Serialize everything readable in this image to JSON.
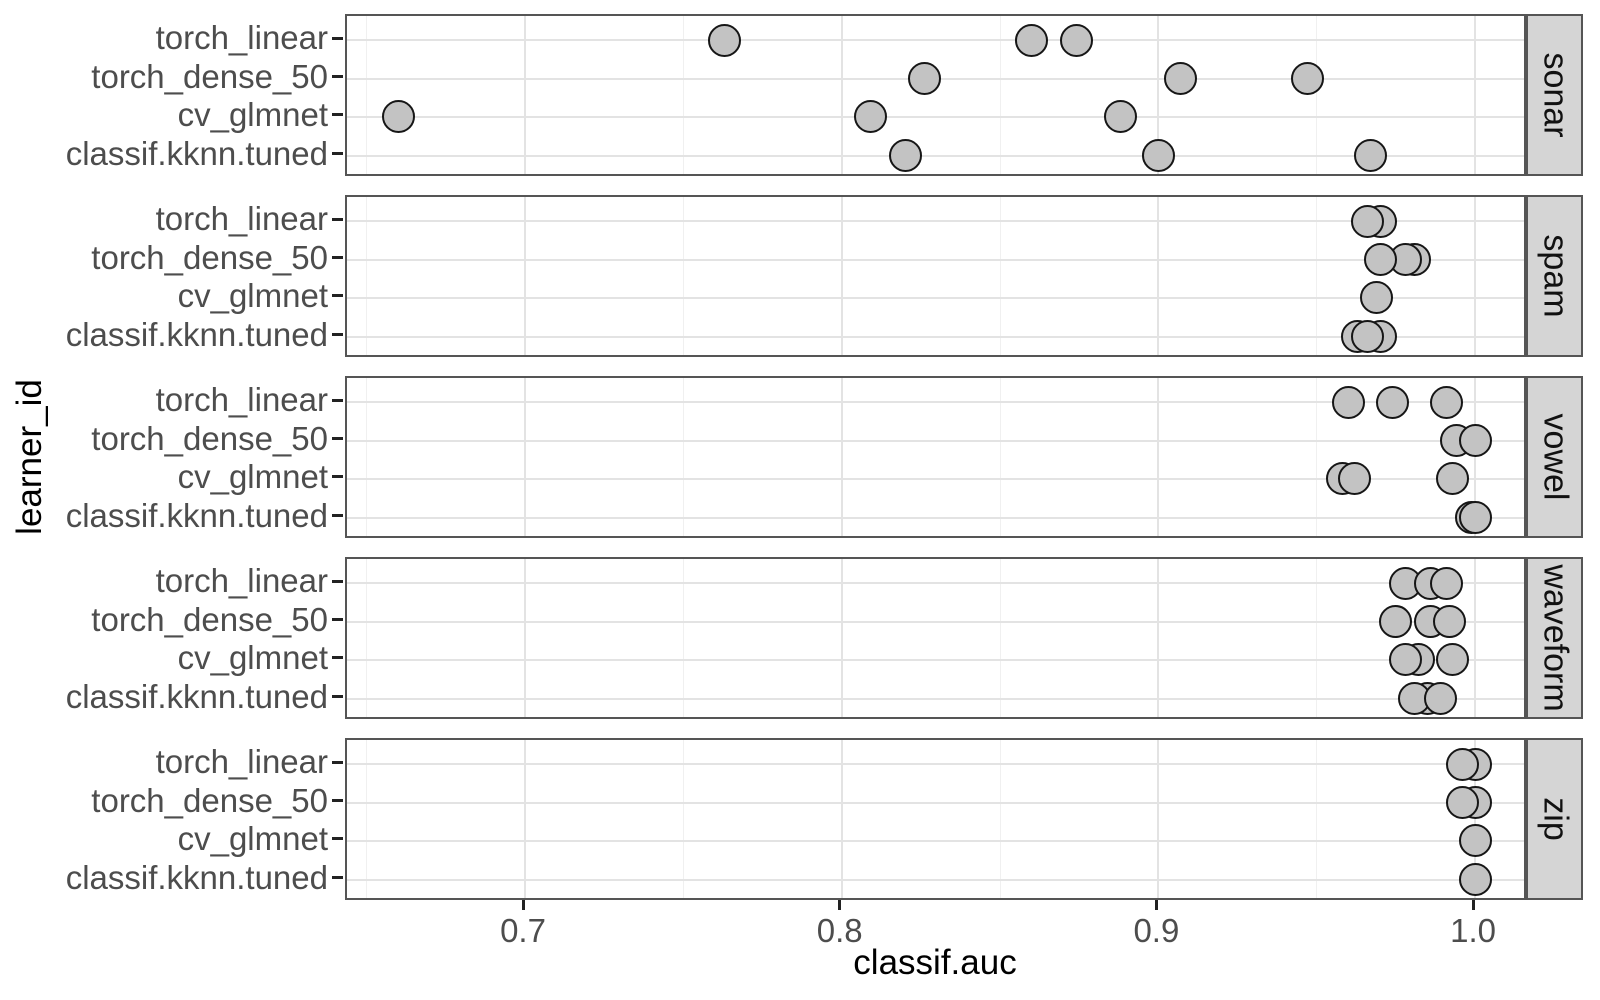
{
  "style_colors": {
    "background": "#ffffff",
    "point_fill": "#c3c3c3",
    "point_stroke": "#161616",
    "panel_border": "#555555",
    "strip_fill": "#d5d5d5",
    "strip_text": "#111111",
    "grid_major": "#e3e3e3",
    "grid_minor": "#f0f0f0",
    "axis_text": "#4d4d4d",
    "axis_title": "#000000",
    "tick_mark": "#222222"
  },
  "chart_data": {
    "type": "scatter",
    "title": "",
    "xlabel": "classif.auc",
    "ylabel": "learner_id",
    "grid": true,
    "legend": "none",
    "xlim": [
      0.6438,
      1.0167
    ],
    "x_ticks": {
      "labels": [
        "0.7",
        "0.8",
        "0.9",
        "1.0"
      ],
      "values": [
        0.7,
        0.8,
        0.9,
        1.0
      ]
    },
    "x_minor_gridlines": [
      0.65,
      0.75,
      0.85,
      0.95
    ],
    "y_categories_top_to_bottom": [
      "torch_linear",
      "torch_dense_50",
      "cv_glmnet",
      "classif.kknn.tuned"
    ],
    "facet_variable_values": [
      "sonar",
      "spam",
      "vowel",
      "waveform",
      "zip"
    ],
    "facets": [
      {
        "task": "sonar",
        "points_by_learner": [
          [
            0.763,
            0.86,
            0.874
          ],
          [
            0.826,
            0.907,
            0.947
          ],
          [
            0.66,
            0.809,
            0.888
          ],
          [
            0.82,
            0.9,
            0.967
          ]
        ]
      },
      {
        "task": "spam",
        "points_by_learner": [
          [
            0.97,
            0.966
          ],
          [
            0.981,
            0.978,
            0.97
          ],
          [
            0.969
          ],
          [
            0.963,
            0.97,
            0.966
          ]
        ]
      },
      {
        "task": "vowel",
        "points_by_learner": [
          [
            0.96,
            0.974,
            0.991
          ],
          [
            0.994,
            1.0
          ],
          [
            0.958,
            0.962,
            0.993
          ],
          [
            0.999,
            1.0
          ]
        ]
      },
      {
        "task": "waveform",
        "points_by_learner": [
          [
            0.978,
            0.986,
            0.991
          ],
          [
            0.975,
            0.986,
            0.992
          ],
          [
            0.982,
            0.978,
            0.993
          ],
          [
            0.985,
            0.981,
            0.989
          ]
        ]
      },
      {
        "task": "zip",
        "points_by_learner": [
          [
            1.0,
            0.996
          ],
          [
            1.0,
            0.996
          ],
          [
            1.0
          ],
          [
            1.0
          ]
        ]
      }
    ]
  }
}
